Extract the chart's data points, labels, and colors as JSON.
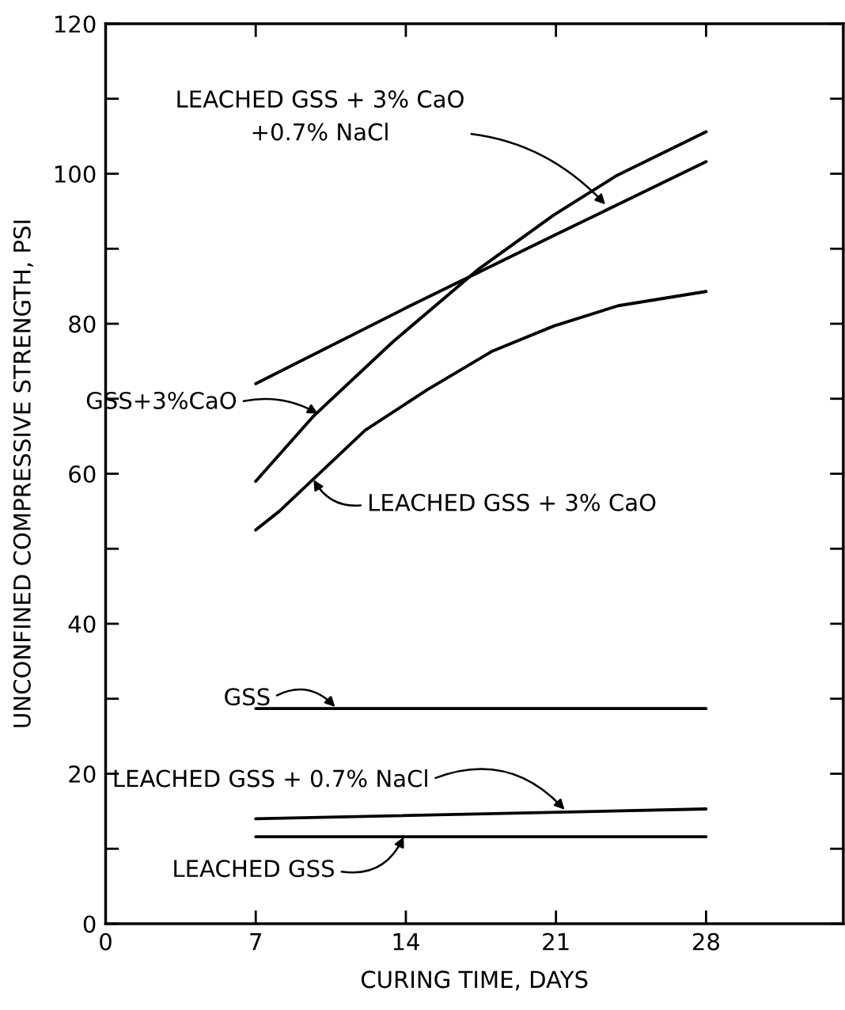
{
  "chart_data": {
    "type": "line",
    "xlabel": "CURING TIME, DAYS",
    "ylabel": "UNCONFINED COMPRESSIVE STRENGTH, PSI",
    "xlim": [
      0,
      34.4
    ],
    "ylim": [
      0,
      120
    ],
    "xticks": [
      0,
      7,
      14,
      21,
      28
    ],
    "yticks": [
      0,
      20,
      40,
      60,
      80,
      100,
      120
    ],
    "grid": false,
    "marker": "none",
    "line_style": "solid",
    "series": [
      {
        "color": "#000000",
        "x": [
          7,
          14,
          21,
          28
        ],
        "values": [
          72.0,
          82.1,
          91.9,
          101.6
        ]
      },
      {
        "color": "#000000",
        "x": [
          7,
          9.7,
          13.4,
          17.4,
          20.9,
          23.8,
          28
        ],
        "values": [
          59.0,
          67.7,
          77.6,
          87.3,
          94.5,
          99.7,
          105.6
        ]
      },
      {
        "color": "#000000",
        "x": [
          7,
          8.1,
          12.1,
          15.0,
          18.0,
          20.9,
          23.9,
          28
        ],
        "values": [
          52.5,
          55.0,
          65.8,
          71.2,
          76.3,
          79.7,
          82.4,
          84.3
        ]
      },
      {
        "color": "#000000",
        "x": [
          7,
          28
        ],
        "values": [
          28.7,
          28.7
        ]
      },
      {
        "color": "#000000",
        "x": [
          7,
          28
        ],
        "values": [
          14.0,
          15.3
        ]
      },
      {
        "color": "#000000",
        "x": [
          7,
          28
        ],
        "values": [
          11.6,
          11.6
        ]
      }
    ],
    "annotations": [
      {
        "text": "LEACHED GSS + 3% CaO\n+0.7% NaCl",
        "x": 23.3,
        "y": 95.9
      },
      {
        "text": "GSS+3%CaO",
        "x": 9.9,
        "y": 68.0
      },
      {
        "text": "LEACHED GSS + 3% CaO",
        "x": 9.7,
        "y": 59.2
      },
      {
        "text": "GSS",
        "x": 10.7,
        "y": 28.9
      },
      {
        "text": "LEACHED GSS + 0.7% NaCl",
        "x": 21.4,
        "y": 15.2
      },
      {
        "text": "LEACHED GSS",
        "x": 13.9,
        "y": 11.6
      }
    ]
  }
}
